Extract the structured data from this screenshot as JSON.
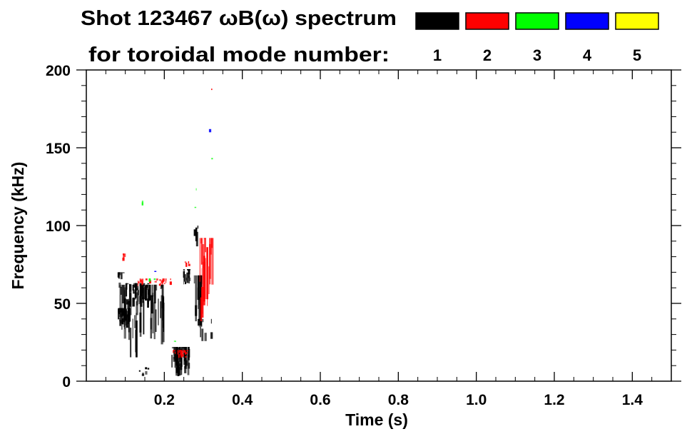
{
  "chart_data": {
    "type": "heatmap",
    "title": "Shot 123467 ωB(ω) spectrum",
    "subtitle": "for toroidal mode number:",
    "xlabel": "Time (s)",
    "ylabel": "Frequency (kHz)",
    "xlim": [
      0,
      1.5
    ],
    "ylim": [
      0,
      200
    ],
    "xticks": [
      0.2,
      0.4,
      0.6,
      0.8,
      1.0,
      1.2,
      1.4
    ],
    "xtick_labels": [
      "0.2",
      "0.4",
      "0.6",
      "0.8",
      "1.0",
      "1.2",
      "1.4"
    ],
    "yticks": [
      0,
      50,
      100,
      150,
      200
    ],
    "ytick_labels": [
      "0",
      "50",
      "100",
      "150",
      "200"
    ],
    "grid": false,
    "legend": [
      {
        "label": "1",
        "color": "#000000"
      },
      {
        "label": "2",
        "color": "#ff0000"
      },
      {
        "label": "3",
        "color": "#00ff00"
      },
      {
        "label": "4",
        "color": "#0000ff"
      },
      {
        "label": "5",
        "color": "#ffff00"
      }
    ],
    "legend_position": "top-right",
    "features": [
      {
        "mode": 1,
        "t": [
          0.08,
          0.11
        ],
        "f": [
          34,
          47
        ],
        "density": 40
      },
      {
        "mode": 1,
        "t": [
          0.1,
          0.16
        ],
        "f": [
          46,
          63
        ],
        "density": 45
      },
      {
        "mode": 1,
        "t": [
          0.085,
          0.2
        ],
        "f": [
          15,
          62
        ],
        "density": 50
      },
      {
        "mode": 1,
        "t": [
          0.08,
          0.095
        ],
        "f": [
          55,
          70
        ],
        "density": 10
      },
      {
        "mode": 1,
        "t": [
          0.13,
          0.16
        ],
        "f": [
          3,
          9
        ],
        "density": 6
      },
      {
        "mode": 1,
        "t": [
          0.215,
          0.262
        ],
        "f": [
          3,
          22
        ],
        "density": 55
      },
      {
        "mode": 1,
        "t": [
          0.245,
          0.263
        ],
        "f": [
          62,
          72
        ],
        "density": 16
      },
      {
        "mode": 1,
        "t": [
          0.27,
          0.295
        ],
        "f": [
          25,
          68
        ],
        "density": 18
      },
      {
        "mode": 1,
        "t": [
          0.275,
          0.285
        ],
        "f": [
          86,
          100
        ],
        "density": 4
      },
      {
        "mode": 1,
        "t": [
          0.285,
          0.32
        ],
        "f": [
          22,
          40
        ],
        "density": 8
      },
      {
        "mode": 2,
        "t": [
          0.092,
          0.098
        ],
        "f": [
          74,
          82
        ],
        "density": 5
      },
      {
        "mode": 2,
        "t": [
          0.13,
          0.215
        ],
        "f": [
          61,
          66
        ],
        "density": 25
      },
      {
        "mode": 2,
        "t": [
          0.22,
          0.26
        ],
        "f": [
          15,
          20
        ],
        "density": 22
      },
      {
        "mode": 2,
        "t": [
          0.248,
          0.262
        ],
        "f": [
          73,
          77
        ],
        "density": 6
      },
      {
        "mode": 2,
        "t": [
          0.29,
          0.322
        ],
        "f": [
          35,
          92
        ],
        "density": 22
      },
      {
        "mode": 2,
        "t": [
          0.32,
          0.322
        ],
        "f": [
          186,
          188
        ],
        "density": 1
      },
      {
        "mode": 3,
        "t": [
          0.222,
          0.228
        ],
        "f": [
          24,
          26
        ],
        "density": 2
      },
      {
        "mode": 3,
        "t": [
          0.14,
          0.145
        ],
        "f": [
          112,
          116
        ],
        "density": 2
      },
      {
        "mode": 3,
        "t": [
          0.28,
          0.283
        ],
        "f": [
          121,
          124
        ],
        "density": 1
      },
      {
        "mode": 3,
        "t": [
          0.277,
          0.28
        ],
        "f": [
          110,
          112
        ],
        "density": 1
      },
      {
        "mode": 3,
        "t": [
          0.32,
          0.322
        ],
        "f": [
          142,
          144
        ],
        "density": 1
      },
      {
        "mode": 3,
        "t": [
          0.16,
          0.18
        ],
        "f": [
          62,
          66
        ],
        "density": 3
      },
      {
        "mode": 4,
        "t": [
          0.314,
          0.316
        ],
        "f": [
          156,
          162
        ],
        "density": 1
      },
      {
        "mode": 4,
        "t": [
          0.17,
          0.175
        ],
        "f": [
          70,
          72
        ],
        "density": 1
      }
    ]
  }
}
